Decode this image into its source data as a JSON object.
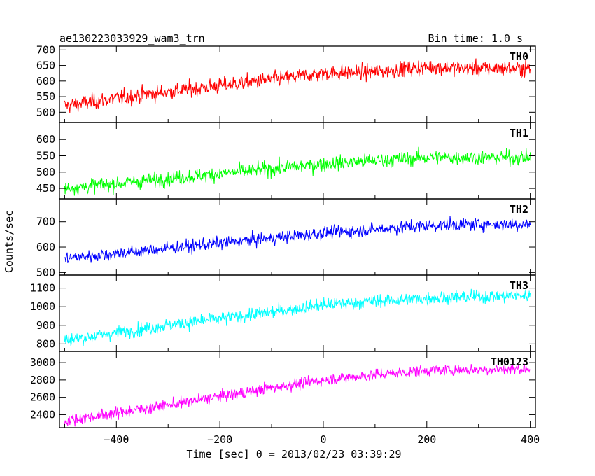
{
  "chart_data": {
    "type": "line",
    "title": "ae130223033929_wam3_trn",
    "bin_time": "Bin time: 1.0 s",
    "xlabel": "Time [sec] 0 = 2013/02/23 03:39:29",
    "ylabel": "Counts/sec",
    "xlim": [
      -510,
      410
    ],
    "xticks": [
      -400,
      -200,
      0,
      200,
      400
    ],
    "xtick_labels": [
      "−400",
      "−200",
      "0",
      "200",
      "400"
    ],
    "panels": [
      {
        "name": "TH0",
        "color": "#ff0000",
        "ylim": [
          467,
          712
        ],
        "yticks": [
          500,
          550,
          600,
          650,
          700
        ],
        "ytick_labels": [
          "500",
          "550",
          "600",
          "650",
          "700"
        ],
        "x": [
          -500,
          -400,
          -300,
          -200,
          -100,
          0,
          100,
          200,
          300,
          400
        ],
        "values": [
          520,
          545,
          565,
          585,
          605,
          625,
          630,
          645,
          640,
          640
        ],
        "noise": 25
      },
      {
        "name": "TH1",
        "color": "#00ff00",
        "ylim": [
          418,
          652
        ],
        "yticks": [
          450,
          500,
          550,
          600
        ],
        "ytick_labels": [
          "450",
          "500",
          "550",
          "600"
        ],
        "x": [
          -500,
          -400,
          -300,
          -200,
          -100,
          0,
          100,
          200,
          300,
          400
        ],
        "values": [
          450,
          465,
          480,
          495,
          510,
          525,
          535,
          545,
          545,
          545
        ],
        "noise": 22
      },
      {
        "name": "TH2",
        "color": "#0000ff",
        "ylim": [
          490,
          790
        ],
        "yticks": [
          500,
          600,
          700
        ],
        "ytick_labels": [
          "500",
          "600",
          "700"
        ],
        "x": [
          -500,
          -400,
          -300,
          -200,
          -100,
          0,
          100,
          200,
          300,
          400
        ],
        "values": [
          555,
          575,
          595,
          615,
          635,
          655,
          670,
          685,
          690,
          690
        ],
        "noise": 25
      },
      {
        "name": "TH3",
        "color": "#00ffff",
        "ylim": [
          760,
          1170
        ],
        "yticks": [
          800,
          900,
          1000,
          1100
        ],
        "ytick_labels": [
          "800",
          "900",
          "1000",
          "1100"
        ],
        "x": [
          -500,
          -400,
          -300,
          -200,
          -100,
          0,
          100,
          200,
          300,
          400
        ],
        "values": [
          820,
          860,
          900,
          935,
          970,
          1010,
          1030,
          1045,
          1055,
          1060
        ],
        "noise": 35
      },
      {
        "name": "TH0123",
        "color": "#ff00ff",
        "ylim": [
          2250,
          3130
        ],
        "yticks": [
          2400,
          2600,
          2800,
          3000
        ],
        "ytick_labels": [
          "2400",
          "2600",
          "2800",
          "3000"
        ],
        "x": [
          -500,
          -400,
          -300,
          -200,
          -100,
          0,
          100,
          200,
          300,
          400
        ],
        "values": [
          2330,
          2420,
          2510,
          2610,
          2710,
          2800,
          2860,
          2910,
          2920,
          2930
        ],
        "noise": 65
      }
    ]
  }
}
